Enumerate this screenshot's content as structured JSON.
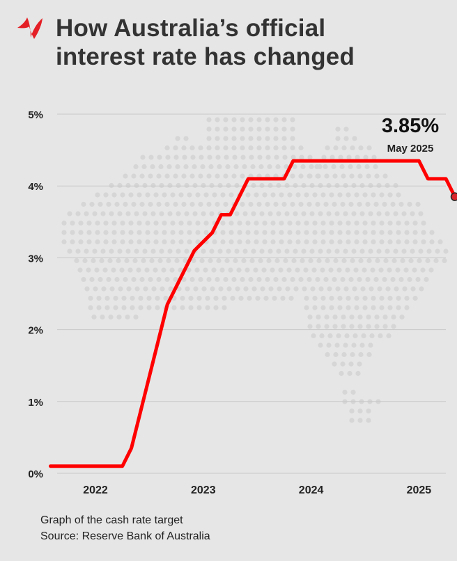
{
  "header": {
    "title_line1": "How Australia’s official",
    "title_line2": "interest rate has changed",
    "logo_icon": "sbs-logo-icon",
    "logo_color": "#e41f25"
  },
  "chart_data": {
    "type": "line",
    "title": "How Australia’s official interest rate has changed",
    "xlabel": "",
    "ylabel": "",
    "x_ticks": [
      "2022",
      "2023",
      "2024",
      "2025"
    ],
    "y_ticks": [
      "0%",
      "1%",
      "2%",
      "3%",
      "4%",
      "5%"
    ],
    "ylim": [
      0,
      5
    ],
    "xlim": [
      "2021-07",
      "2025-06"
    ],
    "grid": true,
    "line_color": "#ff0000",
    "series": [
      {
        "name": "",
        "points": [
          {
            "x": "2021-08",
            "y": 0.1
          },
          {
            "x": "2022-04",
            "y": 0.1
          },
          {
            "x": "2022-05",
            "y": 0.35
          },
          {
            "x": "2022-06",
            "y": 0.85
          },
          {
            "x": "2022-07",
            "y": 1.35
          },
          {
            "x": "2022-08",
            "y": 1.85
          },
          {
            "x": "2022-09",
            "y": 2.35
          },
          {
            "x": "2022-10",
            "y": 2.6
          },
          {
            "x": "2022-11",
            "y": 2.85
          },
          {
            "x": "2022-12",
            "y": 3.1
          },
          {
            "x": "2023-02",
            "y": 3.35
          },
          {
            "x": "2023-03",
            "y": 3.6
          },
          {
            "x": "2023-04",
            "y": 3.6
          },
          {
            "x": "2023-05",
            "y": 3.85
          },
          {
            "x": "2023-06",
            "y": 4.1
          },
          {
            "x": "2023-10",
            "y": 4.1
          },
          {
            "x": "2023-11",
            "y": 4.35
          },
          {
            "x": "2025-01",
            "y": 4.35
          },
          {
            "x": "2025-02",
            "y": 4.1
          },
          {
            "x": "2025-04",
            "y": 4.1
          },
          {
            "x": "2025-05",
            "y": 3.85
          }
        ]
      }
    ],
    "annotation": {
      "value": "3.85%",
      "label": "May 2025",
      "x": "2025-05",
      "y": 3.85
    }
  },
  "footnote": {
    "line1": "Graph of the cash rate target",
    "line2": "Source: Reserve Bank of Australia"
  }
}
